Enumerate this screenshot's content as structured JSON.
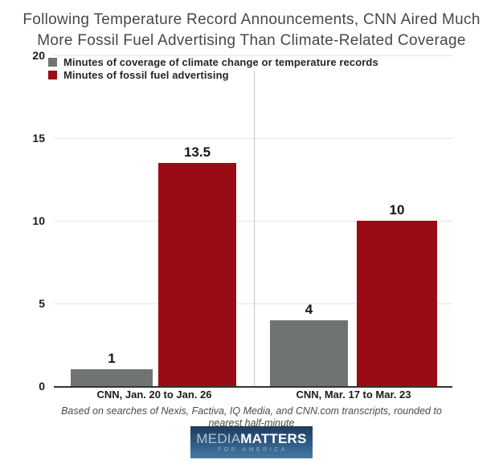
{
  "title": {
    "line1": "Following Temperature Record Announcements, CNN Aired Much",
    "line2": "More Fossil Fuel Advertising Than Climate-Related Coverage"
  },
  "chart_data": {
    "type": "bar",
    "categories": [
      "CNN, Jan. 20 to Jan. 26",
      "CNN, Mar. 17 to Mar. 23"
    ],
    "series": [
      {
        "name": "Minutes of coverage of climate change or temperature records",
        "color": "#6f7472",
        "values": [
          1,
          4
        ]
      },
      {
        "name": "Minutes of fossil fuel advertising",
        "color": "#9a0c15",
        "values": [
          13.5,
          10
        ]
      }
    ],
    "title": "Following Temperature Record Announcements, CNN Aired Much More Fossil Fuel Advertising Than Climate-Related Coverage",
    "xlabel": "",
    "ylabel": "",
    "ylim": [
      0,
      20
    ],
    "yticks": [
      20,
      15,
      10,
      5,
      0
    ],
    "grid": "horizontal",
    "legend_position": "top-left"
  },
  "footnote": "Based on searches of Nexis, Factiva, IQ Media, and CNN.com transcripts, rounded to nearest half-minute",
  "logo": {
    "brand_light": "MEDIA",
    "brand_bold": "MATTERS",
    "tagline": "FOR AMERICA"
  },
  "colors": {
    "background": "#ffffff",
    "title_text": "#45484b",
    "axis_text": "#1c1c1a",
    "gridline": "#e5e5e5",
    "baseline": "#35332f",
    "divider": "#c8c8c8",
    "bar_gray": "#6f7472",
    "bar_red": "#9a0c15",
    "logo_top": "#1f3c5c",
    "logo_bottom": "#47799f"
  }
}
